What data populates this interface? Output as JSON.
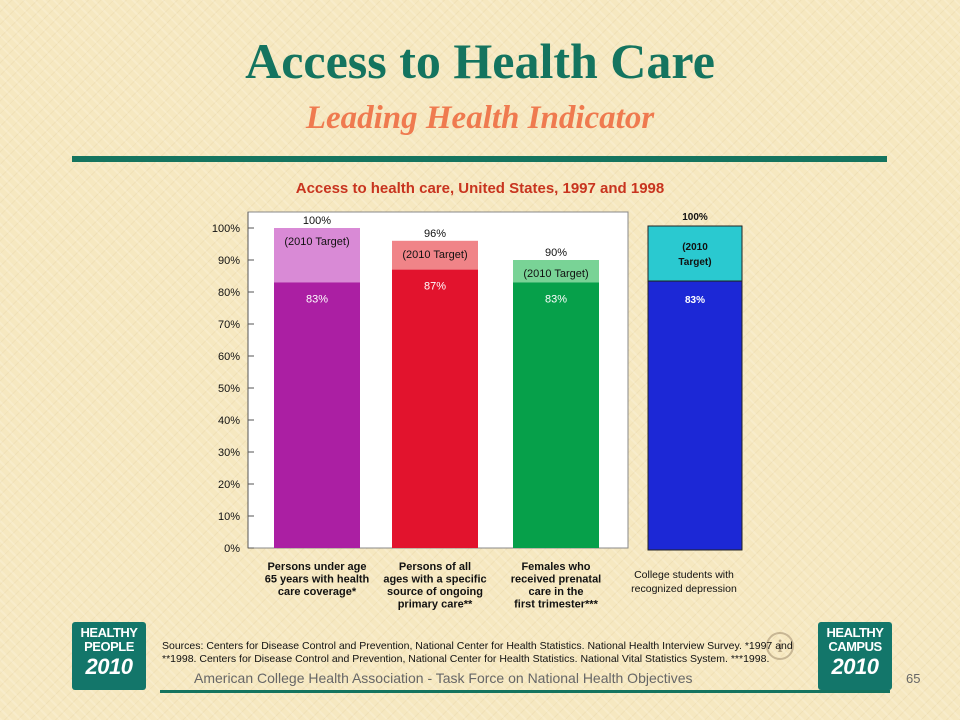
{
  "slide": {
    "title": "Access to Health Care",
    "subtitle": "Leading Health Indicator",
    "footer": "American College Health Association - Task Force on National Health Objectives",
    "page_number": "65",
    "sources": "Sources: Centers for Disease Control and Prevention, National Center for Health Statistics. National Health Interview Survey. *1997 and **1998. Centers for Disease Control and Prevention, National Center for Health Statistics. National Vital Statistics System. ***1998.",
    "logo_left": {
      "line1": "HEALTHY",
      "line2": "PEOPLE",
      "line3": "2010"
    },
    "logo_right": {
      "line1": "HEALTHY",
      "line2": "CAMPUS",
      "line3": "2010"
    },
    "colors": {
      "title": "#14745f",
      "subtitle": "#ef7a4f",
      "chart_heading": "#c8341f",
      "divider": "#14745f"
    }
  },
  "chart_data": [
    {
      "type": "bar",
      "title": "Access to health care, United States, 1997 and 1998",
      "yticks": [
        "100%",
        "90%",
        "80%",
        "70%",
        "60%",
        "50%",
        "40%",
        "30%",
        "20%",
        "10%",
        "0%"
      ],
      "ylim": [
        0,
        100
      ],
      "grid": false,
      "categories": [
        [
          "Persons under age",
          "65 years with health",
          "care coverage*"
        ],
        [
          "Persons of all",
          "ages with a specific",
          "source of ongoing",
          "primary care**"
        ],
        [
          "Females who",
          "received prenatal",
          "care in the",
          "first trimester***"
        ]
      ],
      "series": [
        {
          "values": [
            83,
            87,
            83
          ],
          "labels": [
            "83%",
            "87%",
            "83%"
          ]
        },
        {
          "values": [
            100,
            96,
            90
          ],
          "labels": [
            "100%",
            "96%",
            "90%"
          ],
          "band_label": "(2010 Target)"
        }
      ],
      "colors": {
        "actual": [
          "#ab1fa3",
          "#e2132d",
          "#06a04a"
        ],
        "target": [
          "#d98ad6",
          "#f08488",
          "#79d396"
        ]
      }
    },
    {
      "type": "bar",
      "categories": [
        [
          "College students with",
          "recognized depression"
        ]
      ],
      "series": [
        {
          "values": [
            83
          ],
          "labels": [
            "83%"
          ]
        },
        {
          "values": [
            100
          ],
          "labels": [
            "100%"
          ],
          "band_label": [
            "(2010",
            "Target)"
          ]
        }
      ],
      "colors": {
        "actual": "#1c28d6",
        "target": "#2ac9d0"
      }
    }
  ]
}
